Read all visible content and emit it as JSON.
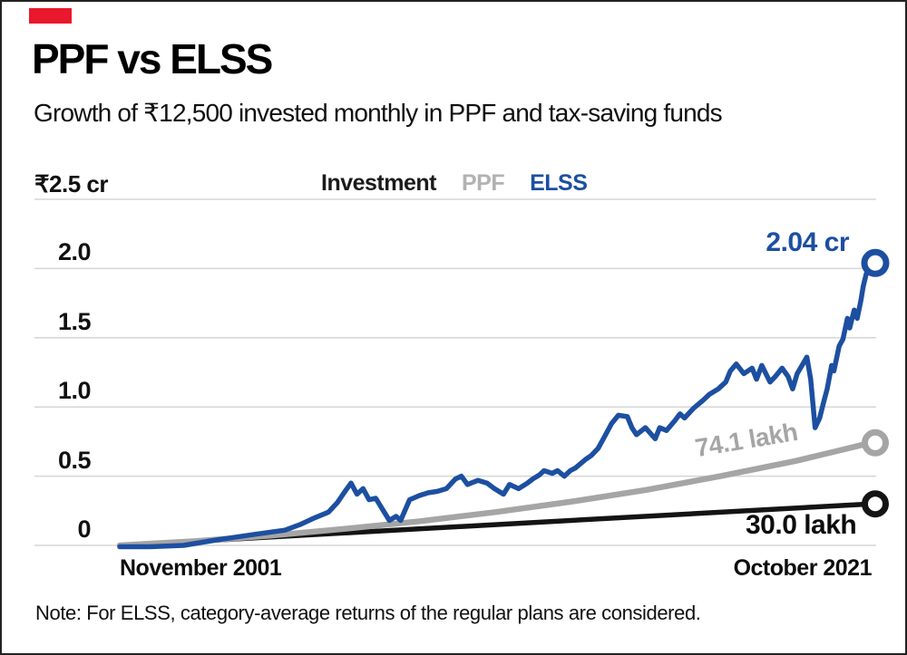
{
  "header": {
    "brand_mark_color": "#e9182c",
    "title": "PPF vs ELSS",
    "subtitle": "Growth of ₹12,500 invested monthly in PPF and tax-saving funds"
  },
  "legend": {
    "items": [
      {
        "label": "Investment",
        "color": "#1a1a1a"
      },
      {
        "label": "PPF",
        "color": "#b2b2b2"
      },
      {
        "label": "ELSS",
        "color": "#1d4fa1"
      }
    ]
  },
  "footnote": "Note: For ELSS, category-average returns of the regular plans are considered.",
  "chart_data": {
    "type": "line",
    "title": "PPF vs ELSS",
    "subtitle": "Growth of ₹12,500 invested monthly in PPF and tax-saving funds",
    "grid": true,
    "legend_position": "top",
    "x_axis": {
      "start_label": "November 2001",
      "end_label": "October 2021",
      "note": "x values of points are normalized time 0=Nov 2001, 1=Oct 2021"
    },
    "y_axis": {
      "top_label": "₹2.5 cr",
      "unit": "cr",
      "min": 0,
      "max": 2.5,
      "ticks": [
        0,
        0.5,
        1.0,
        1.5,
        2.0
      ],
      "tick_labels": [
        "0",
        "0.5",
        "1.0",
        "1.5",
        "2.0"
      ]
    },
    "gridline_color": "#d6d6d6",
    "series": [
      {
        "name": "Investment",
        "color": "#141414",
        "end_label": "30.0 lakh",
        "end_value_cr": 0.3,
        "points": [
          [
            0,
            0
          ],
          [
            1,
            0.3
          ]
        ]
      },
      {
        "name": "PPF",
        "color": "#a5a5a5",
        "end_label": "74.1 lakh",
        "end_value_cr": 0.741,
        "points": [
          [
            0,
            0
          ],
          [
            0.1,
            0.03
          ],
          [
            0.2,
            0.07
          ],
          [
            0.3,
            0.12
          ],
          [
            0.4,
            0.175
          ],
          [
            0.5,
            0.24
          ],
          [
            0.6,
            0.315
          ],
          [
            0.7,
            0.4
          ],
          [
            0.8,
            0.5
          ],
          [
            0.9,
            0.61
          ],
          [
            0.95,
            0.675
          ],
          [
            1,
            0.741
          ]
        ]
      },
      {
        "name": "ELSS",
        "color": "#1d4fa1",
        "end_label": "2.04 cr",
        "end_value_cr": 2.04,
        "points": [
          [
            0,
            -0.01
          ],
          [
            0.04,
            -0.01
          ],
          [
            0.085,
            0.0
          ],
          [
            0.13,
            0.04
          ],
          [
            0.18,
            0.08
          ],
          [
            0.22,
            0.11
          ],
          [
            0.24,
            0.15
          ],
          [
            0.26,
            0.2
          ],
          [
            0.278,
            0.24
          ],
          [
            0.29,
            0.31
          ],
          [
            0.3,
            0.39
          ],
          [
            0.308,
            0.45
          ],
          [
            0.316,
            0.37
          ],
          [
            0.324,
            0.41
          ],
          [
            0.332,
            0.33
          ],
          [
            0.341,
            0.34
          ],
          [
            0.35,
            0.26
          ],
          [
            0.359,
            0.18
          ],
          [
            0.368,
            0.21
          ],
          [
            0.374,
            0.18
          ],
          [
            0.386,
            0.33
          ],
          [
            0.399,
            0.36
          ],
          [
            0.411,
            0.38
          ],
          [
            0.423,
            0.39
          ],
          [
            0.435,
            0.41
          ],
          [
            0.447,
            0.48
          ],
          [
            0.455,
            0.5
          ],
          [
            0.463,
            0.44
          ],
          [
            0.477,
            0.47
          ],
          [
            0.489,
            0.45
          ],
          [
            0.499,
            0.41
          ],
          [
            0.511,
            0.37
          ],
          [
            0.519,
            0.44
          ],
          [
            0.531,
            0.41
          ],
          [
            0.543,
            0.45
          ],
          [
            0.55,
            0.48
          ],
          [
            0.559,
            0.51
          ],
          [
            0.565,
            0.54
          ],
          [
            0.576,
            0.52
          ],
          [
            0.583,
            0.54
          ],
          [
            0.592,
            0.5
          ],
          [
            0.6,
            0.54
          ],
          [
            0.607,
            0.56
          ],
          [
            0.62,
            0.62
          ],
          [
            0.628,
            0.65
          ],
          [
            0.637,
            0.7
          ],
          [
            0.646,
            0.79
          ],
          [
            0.655,
            0.88
          ],
          [
            0.664,
            0.94
          ],
          [
            0.676,
            0.93
          ],
          [
            0.682,
            0.85
          ],
          [
            0.688,
            0.8
          ],
          [
            0.7,
            0.85
          ],
          [
            0.713,
            0.77
          ],
          [
            0.719,
            0.85
          ],
          [
            0.728,
            0.83
          ],
          [
            0.739,
            0.9
          ],
          [
            0.746,
            0.95
          ],
          [
            0.752,
            0.92
          ],
          [
            0.764,
            0.99
          ],
          [
            0.777,
            1.05
          ],
          [
            0.785,
            1.09
          ],
          [
            0.797,
            1.13
          ],
          [
            0.807,
            1.18
          ],
          [
            0.813,
            1.26
          ],
          [
            0.821,
            1.31
          ],
          [
            0.831,
            1.24
          ],
          [
            0.842,
            1.28
          ],
          [
            0.848,
            1.2
          ],
          [
            0.855,
            1.3
          ],
          [
            0.866,
            1.18
          ],
          [
            0.873,
            1.22
          ],
          [
            0.882,
            1.28
          ],
          [
            0.89,
            1.22
          ],
          [
            0.896,
            1.13
          ],
          [
            0.902,
            1.24
          ],
          [
            0.915,
            1.36
          ],
          [
            0.92,
            1.2
          ],
          [
            0.926,
            0.85
          ],
          [
            0.932,
            0.92
          ],
          [
            0.938,
            1.05
          ],
          [
            0.942,
            1.13
          ],
          [
            0.948,
            1.3
          ],
          [
            0.951,
            1.26
          ],
          [
            0.958,
            1.44
          ],
          [
            0.963,
            1.49
          ],
          [
            0.969,
            1.64
          ],
          [
            0.972,
            1.57
          ],
          [
            0.978,
            1.7
          ],
          [
            0.982,
            1.64
          ],
          [
            0.987,
            1.77
          ],
          [
            0.99,
            1.87
          ],
          [
            0.994,
            1.96
          ],
          [
            1,
            2.04
          ]
        ]
      }
    ]
  }
}
